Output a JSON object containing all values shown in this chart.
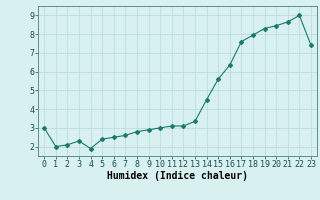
{
  "x": [
    0,
    1,
    2,
    3,
    4,
    5,
    6,
    7,
    8,
    9,
    10,
    11,
    12,
    13,
    14,
    15,
    16,
    17,
    18,
    19,
    20,
    21,
    22,
    23
  ],
  "y": [
    3.0,
    2.0,
    2.1,
    2.3,
    1.9,
    2.4,
    2.5,
    2.6,
    2.8,
    2.9,
    3.0,
    3.1,
    3.1,
    3.35,
    4.5,
    5.6,
    6.35,
    7.6,
    7.95,
    8.3,
    8.45,
    8.65,
    9.0,
    7.4
  ],
  "line_color": "#1a7a6e",
  "marker": "D",
  "marker_size": 2.0,
  "bg_color": "#d9f0f0",
  "grid_color": "#b8d8d8",
  "xlabel": "Humidex (Indice chaleur)",
  "xlabel_fontsize": 7,
  "tick_fontsize": 6,
  "ylim": [
    1.5,
    9.5
  ],
  "xlim": [
    -0.5,
    23.5
  ],
  "yticks": [
    2,
    3,
    4,
    5,
    6,
    7,
    8,
    9
  ],
  "xticks": [
    0,
    1,
    2,
    3,
    4,
    5,
    6,
    7,
    8,
    9,
    10,
    11,
    12,
    13,
    14,
    15,
    16,
    17,
    18,
    19,
    20,
    21,
    22,
    23
  ]
}
